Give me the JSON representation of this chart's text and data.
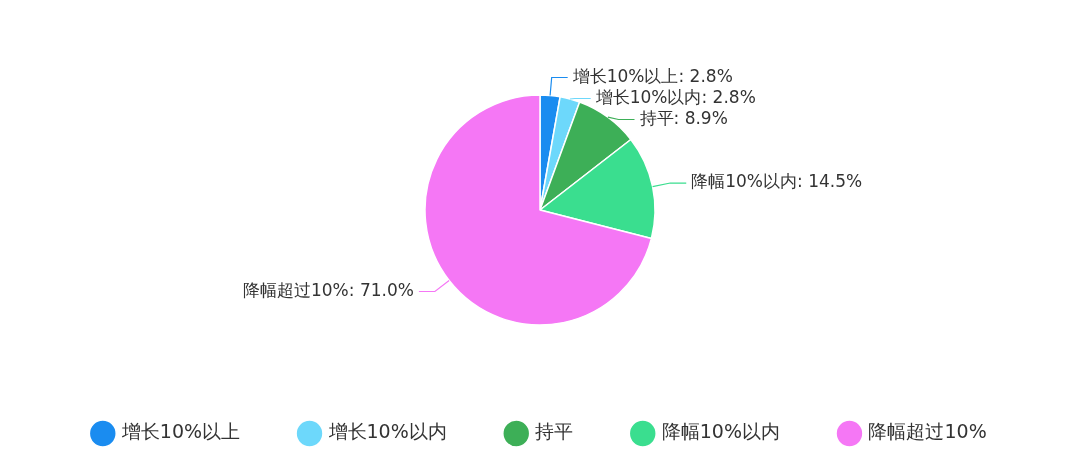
{
  "chart_data": {
    "type": "pie",
    "categories": [
      "增长10%以上",
      "增长10%以内",
      "持平",
      "降幅10%以内",
      "降幅超过10%"
    ],
    "values": [
      2.8,
      2.8,
      8.9,
      14.5,
      71.0
    ],
    "value_labels": [
      "增长10%以上: 2.8%",
      "增长10%以内: 2.8%",
      "持平: 8.9%",
      "降幅10%以内: 14.5%",
      "降幅超过10%: 71.0%"
    ],
    "colors": [
      "#1a8cf0",
      "#6dd8fb",
      "#3daf57",
      "#3ade8f",
      "#f577f5"
    ],
    "legend": "bottom"
  }
}
